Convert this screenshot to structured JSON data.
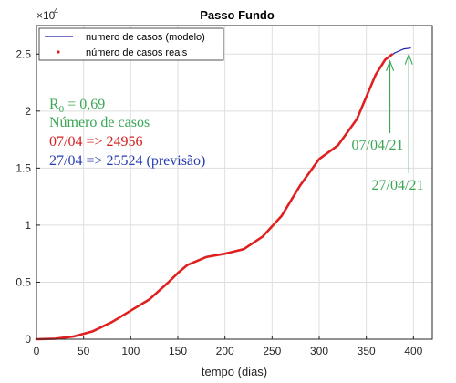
{
  "chart_data": {
    "type": "line",
    "title": "Passo Fundo",
    "xlabel": "tempo (dias)",
    "ylabel": "",
    "xlim": [
      0,
      420
    ],
    "ylim": [
      0,
      27500
    ],
    "x_ticks": [
      0,
      50,
      100,
      150,
      200,
      250,
      300,
      350,
      400
    ],
    "y_ticks": [
      0,
      5000,
      10000,
      15000,
      20000,
      25000
    ],
    "y_tick_labels": [
      "0",
      "0.5",
      "1",
      "1.5",
      "2",
      "2.5"
    ],
    "y_exponent": "×10",
    "y_exponent_power": "4",
    "grid": true,
    "legend_placement": "top-left",
    "series": [
      {
        "name": "numero de casos (modelo)",
        "color": "#1f1fa8",
        "x": [
          0,
          20,
          40,
          60,
          80,
          100,
          120,
          140,
          150,
          160,
          180,
          200,
          220,
          240,
          260,
          280,
          300,
          320,
          340,
          360,
          370,
          380,
          390,
          397
        ],
        "values": [
          0,
          50,
          250,
          700,
          1500,
          2500,
          3500,
          5000,
          5800,
          6500,
          7200,
          7500,
          7900,
          9000,
          10800,
          13500,
          15800,
          17000,
          19300,
          23200,
          24500,
          25100,
          25450,
          25524
        ]
      },
      {
        "name": "número de casos reais",
        "color": "#e02020",
        "x": [
          0,
          20,
          40,
          60,
          80,
          100,
          120,
          140,
          150,
          160,
          180,
          200,
          220,
          240,
          260,
          280,
          300,
          320,
          340,
          360,
          370,
          377
        ],
        "values": [
          0,
          50,
          250,
          700,
          1500,
          2500,
          3500,
          5000,
          5800,
          6500,
          7200,
          7500,
          7900,
          9000,
          10800,
          13500,
          15800,
          17000,
          19300,
          23200,
          24500,
          24956
        ]
      }
    ],
    "annotations": {
      "r0": "R",
      "r0_sub": "0",
      "r0_value": " = 0,69",
      "cases_heading": "Número de casos",
      "line_real": "07/04 => 24956",
      "line_forecast": "27/04 => 25524 (previsão)",
      "arrow_label_real": "07/04/21",
      "arrow_label_forecast": "27/04/21",
      "arrow_x_real": 377,
      "arrow_x_forecast": 397,
      "color_green": "#3aa655",
      "color_red": "#d42020",
      "color_blue": "#2a3fb0"
    }
  }
}
